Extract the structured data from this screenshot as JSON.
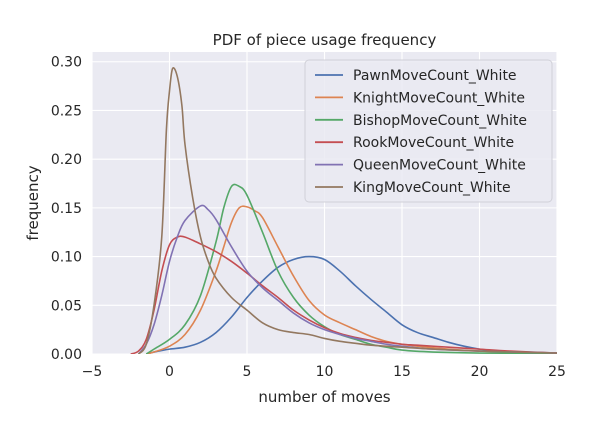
{
  "chart_data": {
    "type": "line",
    "title": "PDF of piece usage frequency",
    "xlabel": "number of moves",
    "ylabel": "frequency",
    "xlim": [
      -5,
      25
    ],
    "ylim": [
      0,
      0.31
    ],
    "x_ticks": [
      -5,
      0,
      5,
      10,
      15,
      20,
      25
    ],
    "x_tick_labels": [
      "−5",
      "0",
      "5",
      "10",
      "15",
      "20",
      "25"
    ],
    "y_ticks": [
      0.0,
      0.05,
      0.1,
      0.15,
      0.2,
      0.25,
      0.3
    ],
    "y_tick_labels": [
      "0.00",
      "0.05",
      "0.10",
      "0.15",
      "0.20",
      "0.25",
      "0.30"
    ],
    "grid": true,
    "background": "#eaeaf2",
    "legend_position": "top-right",
    "series": [
      {
        "name": "PawnMoveCount_White",
        "color": "#4c72b0",
        "points": [
          [
            -1.5,
            0
          ],
          [
            -1,
            0.002
          ],
          [
            0,
            0.005
          ],
          [
            1,
            0.007
          ],
          [
            2,
            0.012
          ],
          [
            3,
            0.022
          ],
          [
            4,
            0.038
          ],
          [
            5,
            0.058
          ],
          [
            6,
            0.075
          ],
          [
            7,
            0.089
          ],
          [
            8,
            0.097
          ],
          [
            9,
            0.1
          ],
          [
            10,
            0.097
          ],
          [
            11,
            0.085
          ],
          [
            12,
            0.07
          ],
          [
            13,
            0.056
          ],
          [
            14,
            0.043
          ],
          [
            15,
            0.03
          ],
          [
            16,
            0.022
          ],
          [
            17,
            0.017
          ],
          [
            18,
            0.012
          ],
          [
            19,
            0.008
          ],
          [
            20,
            0.005
          ],
          [
            21,
            0.003
          ],
          [
            23,
            0.002
          ],
          [
            25,
            0.001
          ]
        ]
      },
      {
        "name": "KnightMoveCount_White",
        "color": "#dd8452",
        "points": [
          [
            -1.5,
            0
          ],
          [
            -1,
            0.002
          ],
          [
            0,
            0.008
          ],
          [
            1,
            0.02
          ],
          [
            2,
            0.045
          ],
          [
            3,
            0.085
          ],
          [
            3.5,
            0.11
          ],
          [
            4,
            0.135
          ],
          [
            4.5,
            0.15
          ],
          [
            5,
            0.151
          ],
          [
            5.5,
            0.147
          ],
          [
            6,
            0.14
          ],
          [
            7,
            0.11
          ],
          [
            8,
            0.08
          ],
          [
            9,
            0.055
          ],
          [
            10,
            0.04
          ],
          [
            11,
            0.032
          ],
          [
            12,
            0.025
          ],
          [
            13,
            0.018
          ],
          [
            14,
            0.013
          ],
          [
            15,
            0.01
          ],
          [
            16,
            0.008
          ],
          [
            18,
            0.005
          ],
          [
            20,
            0.003
          ],
          [
            22,
            0.002
          ],
          [
            25,
            0.001
          ]
        ]
      },
      {
        "name": "BishopMoveCount_White",
        "color": "#55a868",
        "points": [
          [
            -1.5,
            0
          ],
          [
            -1,
            0.005
          ],
          [
            0,
            0.015
          ],
          [
            1,
            0.03
          ],
          [
            2,
            0.06
          ],
          [
            3,
            0.115
          ],
          [
            3.5,
            0.15
          ],
          [
            4,
            0.172
          ],
          [
            4.5,
            0.172
          ],
          [
            5,
            0.163
          ],
          [
            6,
            0.125
          ],
          [
            7,
            0.085
          ],
          [
            8,
            0.058
          ],
          [
            9,
            0.04
          ],
          [
            10,
            0.028
          ],
          [
            11,
            0.02
          ],
          [
            12,
            0.015
          ],
          [
            13,
            0.01
          ],
          [
            14,
            0.007
          ],
          [
            15,
            0.004
          ],
          [
            17,
            0.002
          ],
          [
            20,
            0.001
          ],
          [
            25,
            0.0005
          ]
        ]
      },
      {
        "name": "RookMoveCount_White",
        "color": "#c44e52",
        "points": [
          [
            -2.5,
            0
          ],
          [
            -2,
            0.003
          ],
          [
            -1.5,
            0.015
          ],
          [
            -1,
            0.045
          ],
          [
            -0.5,
            0.085
          ],
          [
            0,
            0.112
          ],
          [
            0.5,
            0.12
          ],
          [
            1,
            0.12
          ],
          [
            2,
            0.113
          ],
          [
            3,
            0.105
          ],
          [
            4,
            0.095
          ],
          [
            5,
            0.083
          ],
          [
            6,
            0.07
          ],
          [
            7,
            0.058
          ],
          [
            8,
            0.045
          ],
          [
            9,
            0.035
          ],
          [
            10,
            0.027
          ],
          [
            11,
            0.021
          ],
          [
            12,
            0.017
          ],
          [
            13,
            0.014
          ],
          [
            14,
            0.012
          ],
          [
            15,
            0.01
          ],
          [
            16,
            0.009
          ],
          [
            18,
            0.007
          ],
          [
            20,
            0.005
          ],
          [
            22,
            0.003
          ],
          [
            25,
            0.001
          ]
        ]
      },
      {
        "name": "QueenMoveCount_White",
        "color": "#8172b3",
        "points": [
          [
            -2,
            0
          ],
          [
            -1.5,
            0.01
          ],
          [
            -1,
            0.03
          ],
          [
            -0.5,
            0.06
          ],
          [
            0,
            0.095
          ],
          [
            0.5,
            0.12
          ],
          [
            1,
            0.137
          ],
          [
            2,
            0.152
          ],
          [
            2.5,
            0.148
          ],
          [
            3,
            0.138
          ],
          [
            4,
            0.11
          ],
          [
            5,
            0.085
          ],
          [
            6,
            0.068
          ],
          [
            7,
            0.055
          ],
          [
            8,
            0.042
          ],
          [
            9,
            0.032
          ],
          [
            10,
            0.025
          ],
          [
            11,
            0.02
          ],
          [
            12,
            0.016
          ],
          [
            13,
            0.013
          ],
          [
            14,
            0.01
          ],
          [
            15,
            0.008
          ],
          [
            17,
            0.005
          ],
          [
            20,
            0.003
          ],
          [
            25,
            0.001
          ]
        ]
      },
      {
        "name": "KingMoveCount_White",
        "color": "#937860",
        "points": [
          [
            -2,
            0
          ],
          [
            -1.5,
            0.01
          ],
          [
            -1,
            0.05
          ],
          [
            -0.5,
            0.12
          ],
          [
            -0.2,
            0.23
          ],
          [
            0,
            0.27
          ],
          [
            0.2,
            0.293
          ],
          [
            0.5,
            0.285
          ],
          [
            0.8,
            0.255
          ],
          [
            1,
            0.215
          ],
          [
            1.5,
            0.16
          ],
          [
            2,
            0.12
          ],
          [
            2.5,
            0.095
          ],
          [
            3,
            0.078
          ],
          [
            4,
            0.058
          ],
          [
            5,
            0.045
          ],
          [
            6,
            0.032
          ],
          [
            7,
            0.025
          ],
          [
            8,
            0.022
          ],
          [
            9,
            0.02
          ],
          [
            10,
            0.016
          ],
          [
            11,
            0.013
          ],
          [
            12,
            0.011
          ],
          [
            13,
            0.009
          ],
          [
            15,
            0.007
          ],
          [
            17,
            0.005
          ],
          [
            20,
            0.003
          ],
          [
            25,
            0.001
          ]
        ]
      }
    ]
  }
}
